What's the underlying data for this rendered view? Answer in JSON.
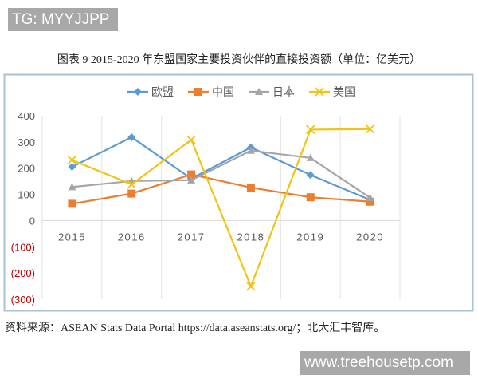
{
  "watermark_top": "TG: MYYJJPP",
  "watermark_bottom": "www.treehousetp.com",
  "source": "资料来源：ASEAN Stats Data Portal https://data.aseanstats.org/；北大汇丰智库。",
  "chart_data": {
    "type": "line",
    "title": "图表 9   2015-2020 年东盟国家主要投资伙伴的直接投资额（单位：亿美元）",
    "categories": [
      "2015",
      "2016",
      "2017",
      "2018",
      "2019",
      "2020"
    ],
    "ylim": [
      -300,
      400
    ],
    "yticks": [
      400,
      300,
      200,
      100,
      0,
      -100,
      -200,
      -300
    ],
    "ytick_labels": [
      "400",
      "300",
      "200",
      "100",
      "0",
      "(100)",
      "(200)",
      "(300)"
    ],
    "negative_label_color": "#c00000",
    "grid": "vertical",
    "legend_position": "top",
    "series": [
      {
        "name": "欧盟",
        "marker": "diamond",
        "color": "#5b9bd5",
        "values": [
          205,
          318,
          160,
          279,
          174,
          79
        ]
      },
      {
        "name": "中国",
        "marker": "square",
        "color": "#ed7d31",
        "values": [
          64,
          103,
          176,
          126,
          89,
          72
        ]
      },
      {
        "name": "日本",
        "marker": "triangle",
        "color": "#a5a5a5",
        "values": [
          128,
          151,
          154,
          267,
          239,
          87
        ]
      },
      {
        "name": "美国",
        "marker": "x",
        "color": "#f2c314",
        "values": [
          231,
          138,
          308,
          -251,
          347,
          349
        ]
      }
    ]
  }
}
